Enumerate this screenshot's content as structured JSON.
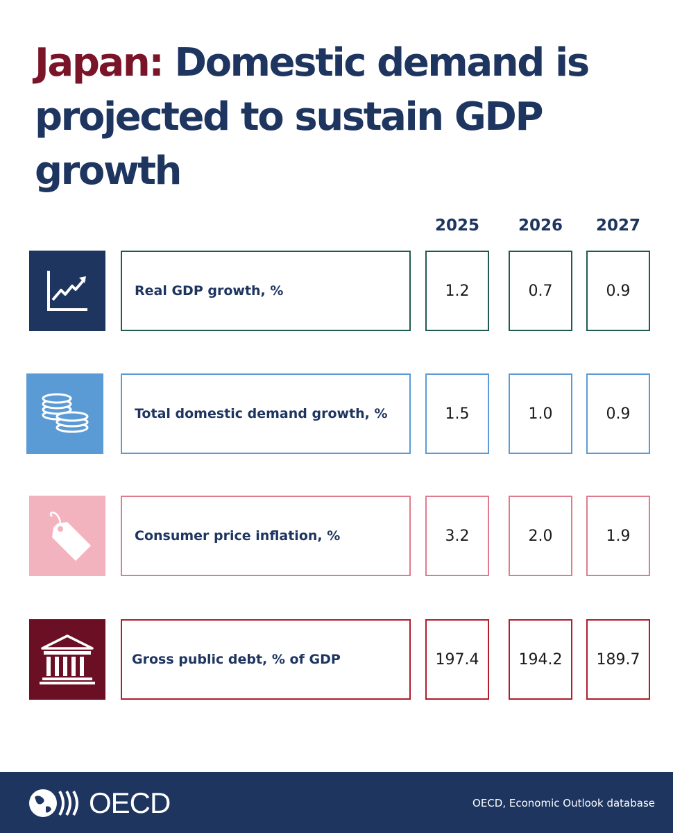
{
  "title": {
    "country": "Japan:",
    "text_line1": "Domestic demand is",
    "text_line2": "projected to sustain GDP growth"
  },
  "years": [
    "2025",
    "2026",
    "2027"
  ],
  "rows": [
    {
      "label": "Real GDP growth, %",
      "icon": "line-chart-icon",
      "icon_bg": "#1e3560",
      "border": "#1f5a50",
      "values": [
        "1.2",
        "0.7",
        "0.9"
      ]
    },
    {
      "label": "Total domestic demand growth, %",
      "icon": "coins-icon",
      "icon_bg": "#5b9bd5",
      "border": "#5b9bd5",
      "values": [
        "1.5",
        "1.0",
        "0.9"
      ]
    },
    {
      "label": "Consumer price inflation, %",
      "icon": "price-tag-icon",
      "icon_bg": "#f2b3bf",
      "border": "#e07a8c",
      "values": [
        "3.2",
        "2.0",
        "1.9"
      ]
    },
    {
      "label": "Gross public debt, % of GDP",
      "icon": "bank-icon",
      "icon_bg": "#6b0f24",
      "border": "#b01b2e",
      "values": [
        "197.4",
        "194.2",
        "189.7"
      ]
    }
  ],
  "footer": {
    "logo": "OECD",
    "source": "OECD, Economic Outlook database",
    "background": "#1e3560"
  }
}
